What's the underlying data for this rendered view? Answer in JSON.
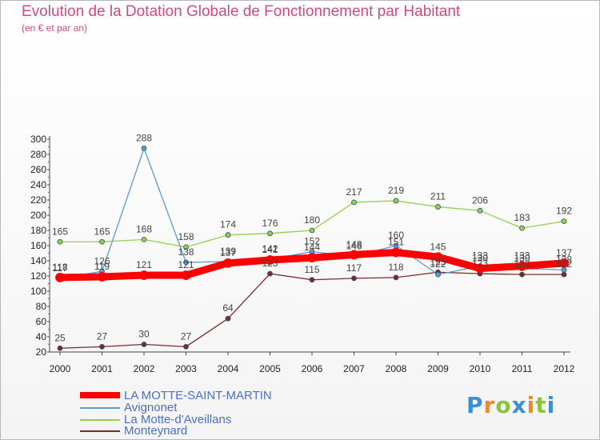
{
  "title": "Evolution de la Dotation Globale de Fonctionnement par Habitant",
  "subtitle": "(en € et par an)",
  "logo_text": "Proxiti",
  "chart_data": {
    "type": "line",
    "title": "Evolution de la Dotation Globale de Fonctionnement par Habitant",
    "subtitle": "(en € et par an)",
    "xlabel": "",
    "ylabel": "",
    "x": [
      "2000",
      "2001",
      "2002",
      "2003",
      "2004",
      "2005",
      "2006",
      "2007",
      "2008",
      "2009",
      "2010",
      "2011",
      "2012"
    ],
    "yticks": [
      20,
      40,
      60,
      80,
      100,
      120,
      140,
      160,
      180,
      200,
      220,
      240,
      260,
      280,
      300
    ],
    "ylim": [
      20,
      300
    ],
    "grid": false,
    "legend": "bottom-left",
    "series": [
      {
        "name": "LA MOTTE-SAINT-MARTIN",
        "color": "#ff0000",
        "values": [
          118,
          119,
          121,
          121,
          137,
          141,
          144,
          148,
          151,
          145,
          130,
          133,
          137
        ]
      },
      {
        "name": "Avignonet",
        "color": "#5b9bd5",
        "values": [
          117,
          126,
          288,
          138,
          139,
          142,
          152,
          146,
          160,
          122,
          133,
          130,
          128
        ]
      },
      {
        "name": "La Motte-d'Aveillans",
        "color": "#92d050",
        "values": [
          165,
          165,
          168,
          158,
          174,
          176,
          180,
          217,
          219,
          211,
          206,
          183,
          192
        ]
      },
      {
        "name": "Monteynard",
        "color": "#7a2a2a",
        "values": [
          25,
          27,
          30,
          27,
          64,
          123,
          115,
          117,
          118,
          125,
          123,
          122,
          122
        ]
      }
    ]
  }
}
